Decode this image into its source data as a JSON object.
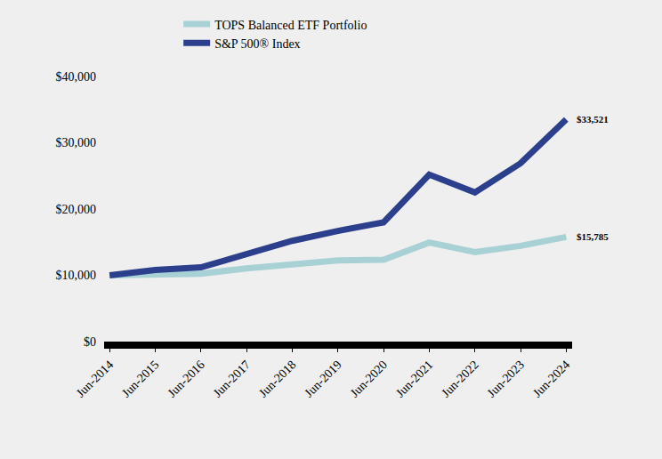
{
  "chart_data": {
    "type": "line",
    "categories": [
      "Jun-2014",
      "Jun-2015",
      "Jun-2016",
      "Jun-2017",
      "Jun-2018",
      "Jun-2019",
      "Jun-2020",
      "Jun-2021",
      "Jun-2022",
      "Jun-2023",
      "Jun-2024"
    ],
    "series": [
      {
        "name": "TOPS Balanced ETF Portfolio",
        "color": "#a8d1d6",
        "values": [
          10000,
          10050,
          10250,
          11050,
          11600,
          12250,
          12350,
          14950,
          13500,
          14450,
          15785
        ],
        "value_labels": [
          null,
          null,
          null,
          null,
          null,
          null,
          null,
          null,
          null,
          null,
          "$15,785"
        ]
      },
      {
        "name": "S&P 500® Index",
        "color": "#2b3f8c",
        "values": [
          10000,
          10800,
          11200,
          13200,
          15200,
          16700,
          18000,
          25200,
          22500,
          26900,
          33521
        ],
        "value_labels": [
          null,
          null,
          null,
          null,
          null,
          null,
          null,
          null,
          null,
          null,
          "$33,521"
        ]
      }
    ],
    "ylim": [
      0,
      40000
    ],
    "yticks": [
      {
        "value": 0,
        "label": "$0"
      },
      {
        "value": 10000,
        "label": "$10,000"
      },
      {
        "value": 20000,
        "label": "$20,000"
      },
      {
        "value": 30000,
        "label": "$30,000"
      },
      {
        "value": 40000,
        "label": "$40,000"
      }
    ],
    "grid": false,
    "legend": "top"
  }
}
